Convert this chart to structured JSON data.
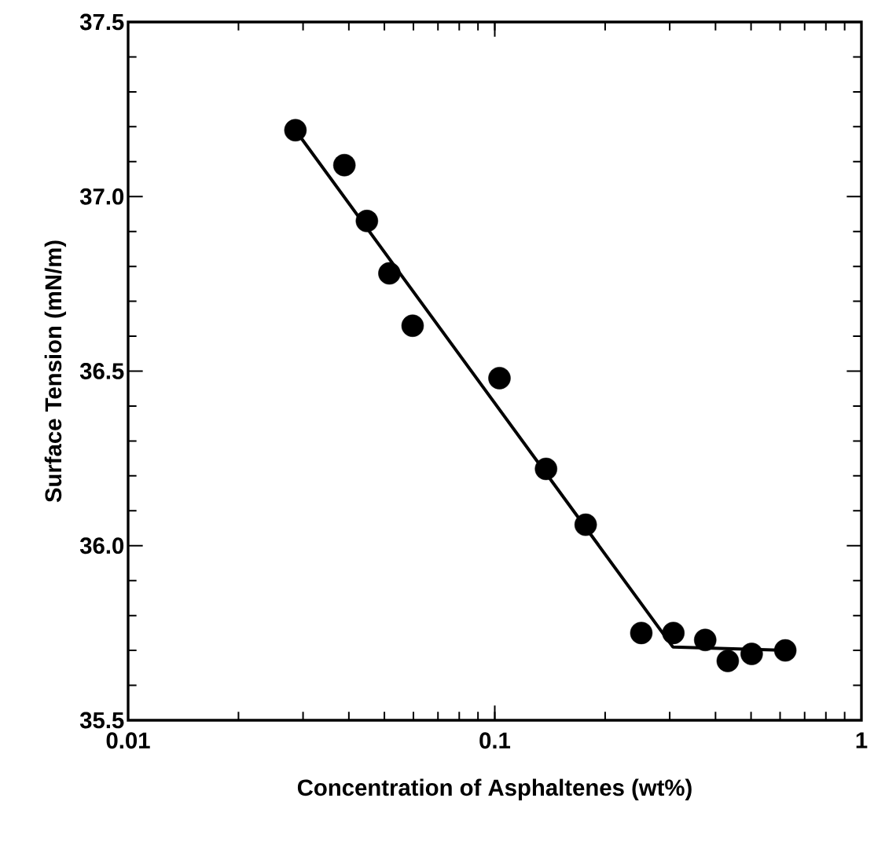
{
  "chart_data": {
    "type": "scatter",
    "xlabel": "Concentration of Asphaltenes (wt%)",
    "ylabel": "Surface Tension (mN/m)",
    "log": "x",
    "grid": false,
    "marker": "circle",
    "xlim": [
      0.01,
      1
    ],
    "ylim": [
      35.5,
      37.5
    ],
    "xticks": [
      0.01,
      0.1,
      1
    ],
    "yticks": [
      {
        "value": 35.5,
        "label": "35.5"
      },
      {
        "value": 36.0,
        "label": "36.0"
      },
      {
        "value": 36.5,
        "label": "36.5"
      },
      {
        "value": 37.0,
        "label": "37.0"
      },
      {
        "value": 37.5,
        "label": "37.5"
      }
    ],
    "series": [
      {
        "color": "#000000",
        "x": [
          0.0286,
          0.0389,
          0.0448,
          0.0516,
          0.0597,
          0.103,
          0.138,
          0.177,
          0.251,
          0.307,
          0.375,
          0.432,
          0.502,
          0.62
        ],
        "values": [
          37.19,
          37.09,
          36.93,
          36.78,
          36.63,
          36.48,
          36.22,
          36.06,
          35.75,
          35.75,
          35.73,
          35.67,
          35.69,
          35.7
        ]
      },
      {
        "type": "line",
        "color": "#000000",
        "line_style": "solid",
        "marker": "none",
        "x": [
          0.0286,
          0.306,
          0.624
        ],
        "values": [
          37.19,
          35.71,
          35.7
        ]
      }
    ]
  }
}
